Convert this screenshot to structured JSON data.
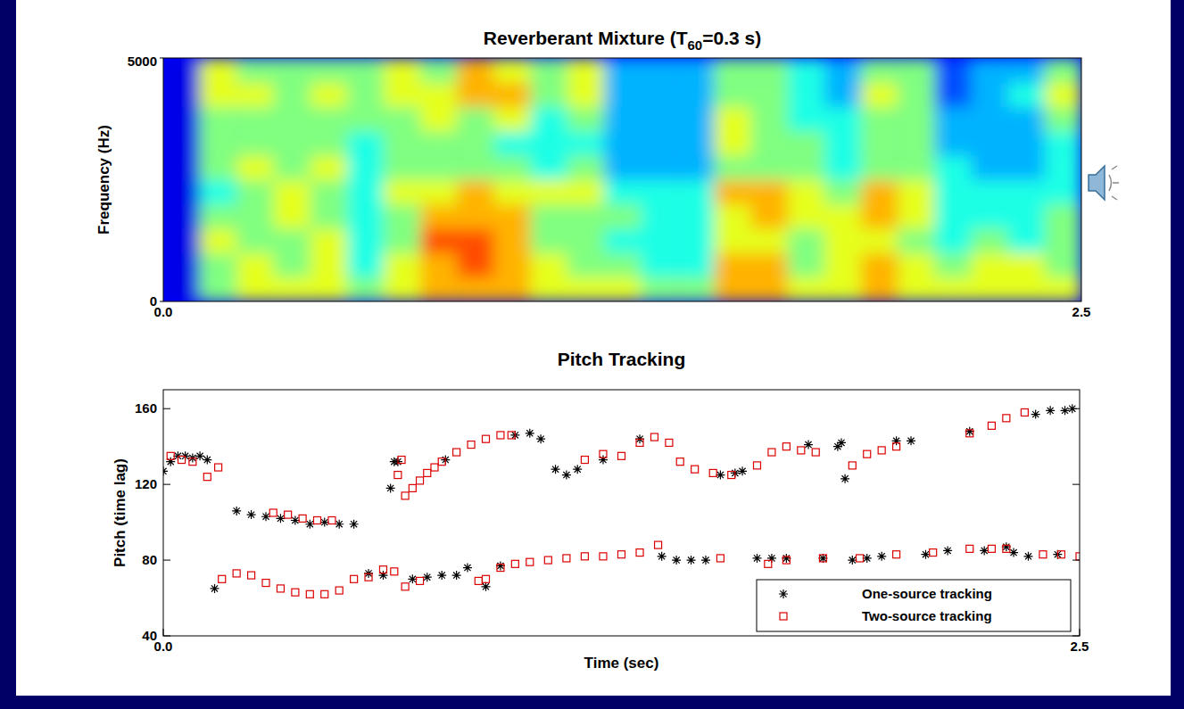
{
  "chart_data": [
    {
      "type": "heatmap",
      "title": "Reverberant Mixture (T60=0.3 s)",
      "y_label": "Frequency (Hz)",
      "xlim": [
        0,
        2.5
      ],
      "xticks": [
        {
          "value": 0,
          "label": "0.0"
        },
        {
          "value": 2.5,
          "label": "2.5"
        }
      ],
      "ylim": [
        0,
        5000
      ],
      "yticks": [
        0,
        5000
      ],
      "crange": [
        0,
        10
      ],
      "cells": [
        [
          1,
          5,
          6,
          6,
          6,
          5,
          6,
          7,
          7,
          7,
          6,
          6,
          6,
          5,
          5,
          7,
          7,
          6,
          6,
          7,
          6,
          6,
          6,
          6,
          6
        ],
        [
          1,
          5,
          6,
          5,
          6,
          4,
          6,
          7,
          8,
          7,
          6,
          5,
          5,
          4,
          4,
          7,
          7,
          5,
          6,
          7,
          6,
          5,
          6,
          6,
          5
        ],
        [
          1,
          6,
          5,
          5,
          6,
          4,
          5,
          8,
          8,
          7,
          5,
          5,
          4,
          4,
          4,
          6,
          6,
          5,
          6,
          6,
          5,
          4,
          5,
          4,
          5
        ],
        [
          1,
          5,
          5,
          6,
          5,
          4,
          5,
          7,
          7,
          7,
          5,
          5,
          5,
          4,
          4,
          6,
          7,
          6,
          6,
          7,
          6,
          4,
          4,
          4,
          5
        ],
        [
          1,
          4,
          5,
          6,
          5,
          4,
          6,
          6,
          7,
          6,
          6,
          6,
          4,
          4,
          4,
          7,
          7,
          6,
          5,
          7,
          6,
          4,
          4,
          4,
          4
        ],
        [
          1,
          5,
          6,
          5,
          6,
          4,
          5,
          5,
          5,
          5,
          4,
          5,
          3,
          3,
          3,
          5,
          5,
          5,
          4,
          5,
          5,
          4,
          3,
          3,
          4
        ],
        [
          1,
          5,
          5,
          5,
          5,
          4,
          5,
          5,
          5,
          4,
          4,
          4,
          3,
          3,
          3,
          6,
          5,
          5,
          4,
          5,
          5,
          3,
          3,
          3,
          4
        ],
        [
          1,
          5,
          5,
          5,
          5,
          5,
          5,
          6,
          5,
          6,
          4,
          5,
          3,
          3,
          3,
          6,
          5,
          4,
          4,
          5,
          5,
          3,
          3,
          3,
          5
        ],
        [
          1,
          6,
          6,
          5,
          6,
          5,
          6,
          6,
          7,
          7,
          5,
          6,
          3,
          3,
          3,
          5,
          5,
          4,
          3,
          6,
          5,
          2,
          3,
          4,
          6
        ],
        [
          1,
          6,
          5,
          5,
          5,
          5,
          6,
          5,
          7,
          6,
          5,
          6,
          3,
          3,
          3,
          5,
          5,
          4,
          3,
          5,
          5,
          2,
          3,
          3,
          5
        ]
      ]
    },
    {
      "type": "scatter",
      "title": "Pitch Tracking",
      "x_label": "Time (sec)",
      "y_label": "Pitch (time lag)",
      "xlim": [
        0,
        2.5
      ],
      "xticks": [
        {
          "value": 0,
          "label": "0.0"
        },
        {
          "value": 2.5,
          "label": "2.5"
        }
      ],
      "ylim": [
        40,
        170
      ],
      "yticks": [
        40,
        80,
        120,
        160
      ],
      "grid": false,
      "legend": "lower right",
      "series": [
        {
          "name": "One-source tracking",
          "color": "#000000",
          "marker": "star",
          "x": [
            0.0,
            0.02,
            0.04,
            0.06,
            0.08,
            0.1,
            0.12,
            0.14,
            0.2,
            0.24,
            0.28,
            0.32,
            0.36,
            0.4,
            0.44,
            0.48,
            0.52,
            0.56,
            0.6,
            0.62,
            0.63,
            0.64,
            0.68,
            0.72,
            0.76,
            0.77,
            0.8,
            0.83,
            0.88,
            0.92,
            0.96,
            1.0,
            1.03,
            1.07,
            1.1,
            1.13,
            1.2,
            1.3,
            1.36,
            1.4,
            1.44,
            1.48,
            1.52,
            1.56,
            1.58,
            1.62,
            1.66,
            1.7,
            1.76,
            1.8,
            1.84,
            1.85,
            1.86,
            1.88,
            1.92,
            1.96,
            2.0,
            2.04,
            2.08,
            2.14,
            2.2,
            2.24,
            2.3,
            2.32,
            2.36,
            2.38,
            2.42,
            2.44,
            2.46,
            2.48
          ],
          "values": [
            127,
            132,
            135,
            135,
            134,
            135,
            133,
            65,
            106,
            104,
            103,
            102,
            101,
            99,
            100,
            99,
            99,
            73,
            72,
            118,
            132,
            132,
            70,
            71,
            72,
            133,
            72,
            76,
            66,
            77,
            146,
            147,
            144,
            128,
            125,
            128,
            133,
            144,
            82,
            80,
            80,
            80,
            125,
            126,
            127,
            81,
            81,
            81,
            141,
            81,
            140,
            142,
            123,
            80,
            81,
            82,
            143,
            143,
            83,
            85,
            148,
            85,
            87,
            84,
            82,
            157,
            159,
            83,
            159,
            160
          ]
        },
        {
          "name": "Two-source tracking",
          "color": "#dd0000",
          "marker": "square",
          "x": [
            0.02,
            0.05,
            0.08,
            0.12,
            0.15,
            0.3,
            0.34,
            0.38,
            0.42,
            0.46,
            0.64,
            0.65,
            0.66,
            0.68,
            0.7,
            0.72,
            0.74,
            0.76,
            0.8,
            0.84,
            0.88,
            0.92,
            0.95,
            1.15,
            1.2,
            1.25,
            1.3,
            1.34,
            1.38,
            1.41,
            1.45,
            1.5,
            1.55,
            1.62,
            1.66,
            1.7,
            1.74,
            1.78,
            1.88,
            1.92,
            1.96,
            2.0,
            2.2,
            2.26,
            2.3,
            2.35,
            0.16,
            0.2,
            0.24,
            0.28,
            0.32,
            0.36,
            0.4,
            0.44,
            0.48,
            0.52,
            0.56,
            0.6,
            0.63,
            0.66,
            0.7,
            0.86,
            0.88,
            0.92,
            0.96,
            1.0,
            1.05,
            1.1,
            1.15,
            1.2,
            1.25,
            1.3,
            1.35,
            1.52,
            1.65,
            1.7,
            1.8,
            1.9,
            2.0,
            2.1,
            2.2,
            2.26,
            2.3,
            2.4,
            2.45,
            2.5
          ],
          "values": [
            135,
            133,
            132,
            124,
            129,
            105,
            104,
            102,
            101,
            101,
            125,
            133,
            114,
            118,
            122,
            126,
            129,
            132,
            137,
            141,
            144,
            146,
            146,
            133,
            136,
            135,
            142,
            145,
            142,
            132,
            128,
            126,
            125,
            130,
            137,
            140,
            138,
            137,
            130,
            136,
            138,
            140,
            147,
            151,
            155,
            158,
            70,
            73,
            72,
            68,
            65,
            63,
            62,
            62,
            64,
            70,
            71,
            75,
            74,
            66,
            69,
            69,
            70,
            76,
            78,
            79,
            80,
            81,
            82,
            82,
            83,
            84,
            88,
            81,
            78,
            80,
            81,
            81,
            83,
            84,
            86,
            86,
            86,
            83,
            83,
            82
          ]
        }
      ]
    }
  ]
}
